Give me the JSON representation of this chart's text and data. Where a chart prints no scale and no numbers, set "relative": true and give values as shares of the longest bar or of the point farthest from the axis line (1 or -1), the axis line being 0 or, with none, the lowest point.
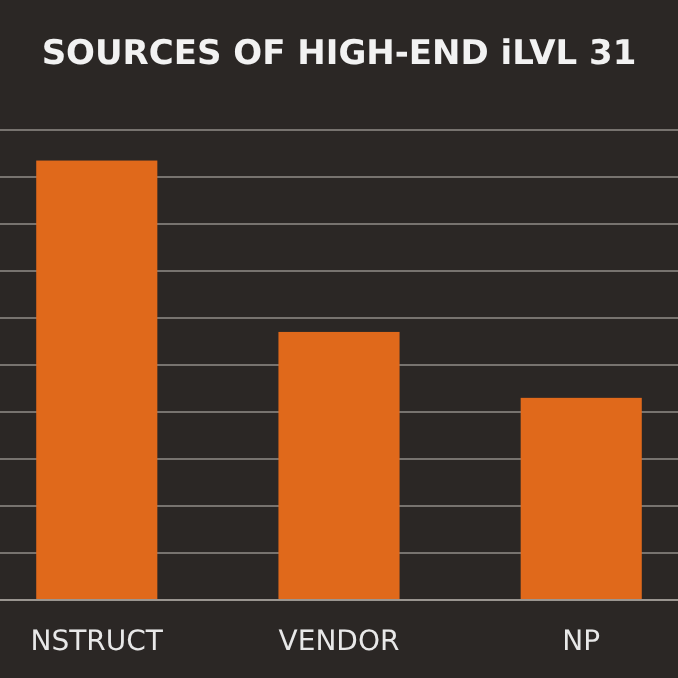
{
  "chart_data": {
    "type": "bar",
    "title": "SOURCES OF HIGH-END iLVL 31",
    "categories": [
      "NSTRUCT",
      "VENDOR",
      "NP"
    ],
    "values": [
      1,
      0.61,
      0.46
    ],
    "color": "#e0691b",
    "relative": true,
    "grid": true
  }
}
